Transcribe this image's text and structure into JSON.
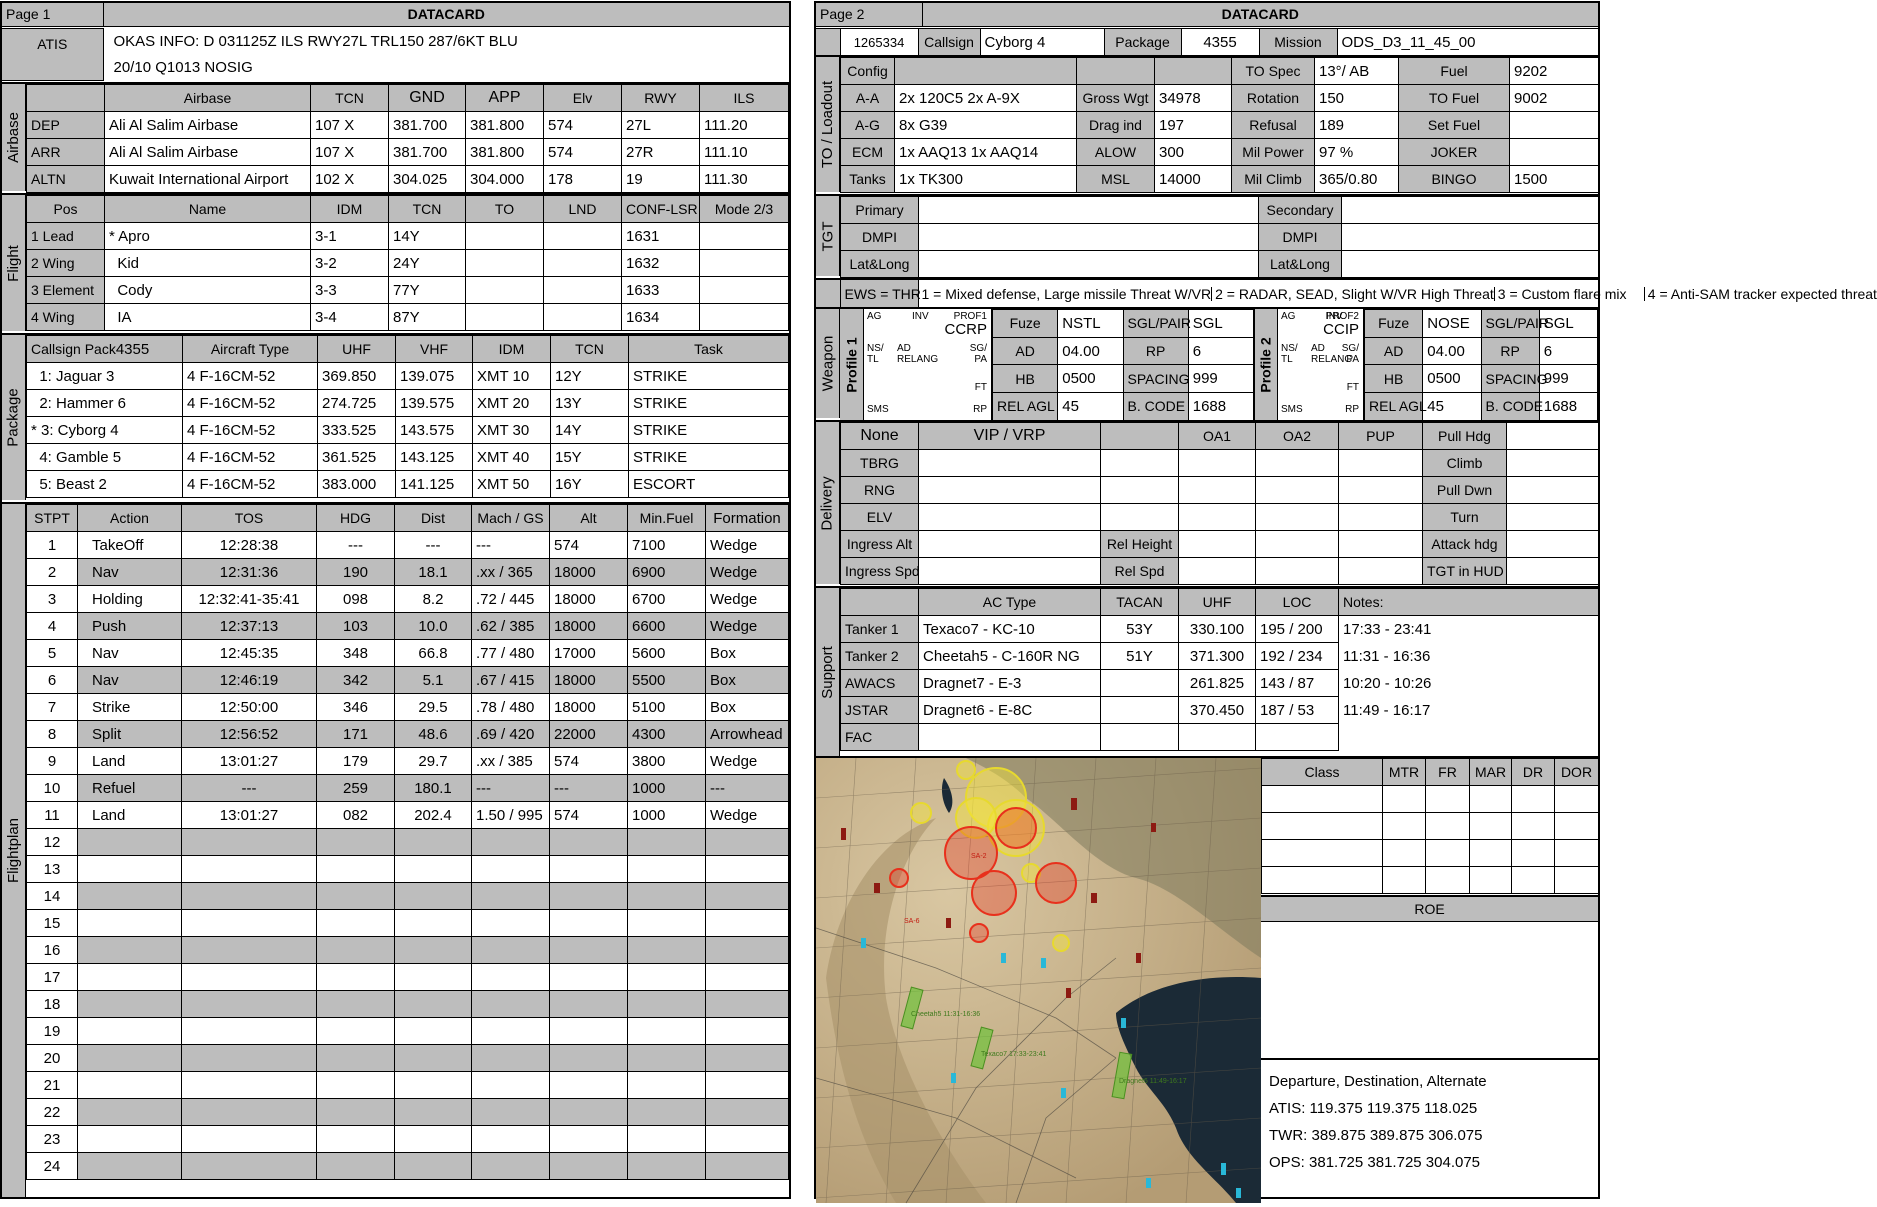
{
  "page1": {
    "page_label": "Page 1",
    "title": "DATACARD",
    "atis": {
      "label": "ATIS",
      "line1": "OKAS INFO: D 031125Z ILS RWY27L TRL150 287/6KT BLU",
      "line2": "20/10 Q1013  NOSIG"
    },
    "airbase": {
      "section": "Airbase",
      "headers": [
        "",
        "Airbase",
        "TCN",
        "GND",
        "APP",
        "Elv",
        "RWY",
        "ILS"
      ],
      "rows": [
        [
          "DEP",
          "Ali Al Salim Airbase",
          "107 X",
          "381.700",
          "381.800",
          "574",
          "27L",
          "111.20"
        ],
        [
          "ARR",
          "Ali Al Salim Airbase",
          "107 X",
          "381.700",
          "381.800",
          "574",
          "27R",
          "111.10"
        ],
        [
          "ALTN",
          "Kuwait International Airport",
          "102 X",
          "304.025",
          "304.000",
          "178",
          "19",
          "111.30"
        ]
      ]
    },
    "flight": {
      "section": "Flight",
      "headers": [
        "Pos",
        "Name",
        "IDM",
        "TCN",
        "TO",
        "LND",
        "CONF-LSR",
        "Mode 2/3"
      ],
      "rows": [
        [
          "1 Lead",
          "* Apro",
          "3-1",
          "14Y",
          "",
          "",
          "1631",
          ""
        ],
        [
          "2 Wing",
          "  Kid",
          "3-2",
          "24Y",
          "",
          "",
          "1632",
          ""
        ],
        [
          "3 Element",
          "  Cody",
          "3-3",
          "77Y",
          "",
          "",
          "1633",
          ""
        ],
        [
          "4 Wing",
          "  IA",
          "3-4",
          "87Y",
          "",
          "",
          "1634",
          ""
        ]
      ]
    },
    "package": {
      "section": "Package",
      "headers": [
        "Callsign Pack",
        "Aircraft Type",
        "UHF",
        "VHF",
        "IDM",
        "TCN",
        "Task"
      ],
      "pack_no": "4355",
      "rows": [
        [
          "  1: Jaguar 3",
          "4 F-16CM-52",
          "369.850",
          "139.075",
          "XMT 10",
          "12Y",
          "STRIKE"
        ],
        [
          "  2: Hammer 6",
          "4 F-16CM-52",
          "274.725",
          "139.575",
          "XMT 20",
          "13Y",
          "STRIKE"
        ],
        [
          "* 3: Cyborg 4",
          "4 F-16CM-52",
          "333.525",
          "143.575",
          "XMT 30",
          "14Y",
          "STRIKE"
        ],
        [
          "  4: Gamble 5",
          "4 F-16CM-52",
          "361.525",
          "143.125",
          "XMT 40",
          "15Y",
          "STRIKE"
        ],
        [
          "  5: Beast 2",
          "4 F-16CM-52",
          "383.000",
          "141.125",
          "XMT 50",
          "16Y",
          "ESCORT"
        ]
      ]
    },
    "flightplan": {
      "section": "Flightplan",
      "headers": [
        "STPT",
        "Action",
        "TOS",
        "HDG",
        "Dist",
        "Mach / GS",
        "Alt",
        "Min.Fuel",
        "Formation"
      ],
      "rows": [
        [
          "1",
          "TakeOff",
          "12:28:38",
          "---",
          "---",
          "---",
          "574",
          "7100",
          "Wedge"
        ],
        [
          "2",
          "Nav",
          "12:31:36",
          "190",
          "18.1",
          ".xx / 365",
          "18000",
          "6900",
          "Wedge"
        ],
        [
          "3",
          "Holding",
          "12:32:41-35:41",
          "098",
          "8.2",
          ".72 / 445",
          "18000",
          "6700",
          "Wedge"
        ],
        [
          "4",
          "Push",
          "12:37:13",
          "103",
          "10.0",
          ".62 / 385",
          "18000",
          "6600",
          "Wedge"
        ],
        [
          "5",
          "Nav",
          "12:45:35",
          "348",
          "66.8",
          ".77 / 480",
          "17000",
          "5600",
          "Box"
        ],
        [
          "6",
          "Nav",
          "12:46:19",
          "342",
          "5.1",
          ".67 / 415",
          "18000",
          "5500",
          "Box"
        ],
        [
          "7",
          "Strike",
          "12:50:00",
          "346",
          "29.5",
          ".78 / 480",
          "18000",
          "5100",
          "Box"
        ],
        [
          "8",
          "Split",
          "12:56:52",
          "171",
          "48.6",
          ".69 / 420",
          "22000",
          "4300",
          "Arrowhead"
        ],
        [
          "9",
          "Land",
          "13:01:27",
          "179",
          "29.7",
          ".xx / 385",
          "574",
          "3800",
          "Wedge"
        ],
        [
          "10",
          "Refuel",
          "---",
          "259",
          "180.1",
          "---",
          "---",
          "1000",
          "---"
        ],
        [
          "11",
          "Land",
          "13:01:27",
          "082",
          "202.4",
          "1.50 / 995",
          "574",
          "1000",
          "Wedge"
        ],
        [
          "12",
          "",
          "",
          "",
          "",
          "",
          "",
          "",
          ""
        ],
        [
          "13",
          "",
          "",
          "",
          "",
          "",
          "",
          "",
          ""
        ],
        [
          "14",
          "",
          "",
          "",
          "",
          "",
          "",
          "",
          ""
        ],
        [
          "15",
          "",
          "",
          "",
          "",
          "",
          "",
          "",
          ""
        ],
        [
          "16",
          "",
          "",
          "",
          "",
          "",
          "",
          "",
          ""
        ],
        [
          "17",
          "",
          "",
          "",
          "",
          "",
          "",
          "",
          ""
        ],
        [
          "18",
          "",
          "",
          "",
          "",
          "",
          "",
          "",
          ""
        ],
        [
          "19",
          "",
          "",
          "",
          "",
          "",
          "",
          "",
          ""
        ],
        [
          "20",
          "",
          "",
          "",
          "",
          "",
          "",
          "",
          ""
        ],
        [
          "21",
          "",
          "",
          "",
          "",
          "",
          "",
          "",
          ""
        ],
        [
          "22",
          "",
          "",
          "",
          "",
          "",
          "",
          "",
          ""
        ],
        [
          "23",
          "",
          "",
          "",
          "",
          "",
          "",
          "",
          ""
        ],
        [
          "24",
          "",
          "",
          "",
          "",
          "",
          "",
          "",
          ""
        ]
      ]
    }
  },
  "page2": {
    "page_label": "Page 2",
    "title": "DATACARD",
    "id_no": "1265334",
    "callsign_label": "Callsign",
    "callsign": "Cyborg 4",
    "package_label": "Package",
    "package": "4355",
    "mission_label": "Mission",
    "mission": "ODS_D3_11_45_00",
    "loadout_section": "TO / Loadout",
    "loadout_rows": [
      [
        "Config",
        "",
        "",
        "",
        "TO Spec",
        "13°/ AB",
        "Fuel",
        "9202"
      ],
      [
        "A-A",
        "2x 120C5 2x A-9X",
        "Gross Wgt",
        "34978",
        "Rotation",
        "150",
        "TO Fuel",
        "9002"
      ],
      [
        "A-G",
        "8x G39",
        "Drag ind",
        "197",
        "Refusal",
        "189",
        "Set Fuel",
        ""
      ],
      [
        "ECM",
        "1x AAQ13 1x AAQ14",
        "ALOW",
        "300",
        "Mil Power",
        "97 %",
        "JOKER",
        ""
      ],
      [
        "Tanks",
        "1x TK300",
        "MSL",
        "14000",
        "Mil Climb",
        "365/0.80",
        "BINGO",
        "1500"
      ]
    ],
    "tgt_section": "TGT",
    "tgt_rows": [
      [
        "Primary",
        "",
        "Secondary",
        ""
      ],
      [
        "DMPI",
        "",
        "DMPI",
        ""
      ],
      [
        "Lat&Long",
        "",
        "Lat&Long",
        ""
      ]
    ],
    "ews": {
      "label": "EWS = THR",
      "items": [
        "1 = Mixed defense, Large missile Threat W/VR",
        "2 = RADAR, SEAD, Slight W/VR High Threat",
        "3 = Custom flare mix",
        "4 = Anti-SAM tracker expected threat"
      ]
    },
    "weapon_section": "Weapon",
    "profiles": [
      {
        "label": "Profile 1",
        "top_left": "AG",
        "inv": "INV",
        "prof": "PROF1",
        "mode": "CCRP",
        "ns": "NS/",
        "tl": "TL",
        "ad": "AD",
        "relang": "RELANG",
        "sg": "SG/",
        "pa": "PA",
        "ft": "FT",
        "sms": "SMS",
        "rp": "RP",
        "fields": [
          [
            "Fuze",
            "NSTL",
            "SGL/PAIR",
            "SGL"
          ],
          [
            "AD",
            "04.00",
            "RP",
            "6"
          ],
          [
            "HB",
            "0500",
            "SPACING",
            "999"
          ],
          [
            "REL AGL",
            "45",
            "B. CODE",
            "1688"
          ]
        ]
      },
      {
        "label": "Profile 2",
        "top_left": "AG",
        "inv": "INV",
        "prof": "PROF2",
        "mode": "CCIP",
        "ns": "NS/",
        "tl": "TL",
        "ad": "AD",
        "relang": "RELANG",
        "sg": "SG/",
        "pa": "PA",
        "ft": "FT",
        "sms": "SMS",
        "rp": "RP",
        "fields": [
          [
            "Fuze",
            "NOSE",
            "SGL/PAIR",
            "SGL"
          ],
          [
            "AD",
            "04.00",
            "RP",
            "6"
          ],
          [
            "HB",
            "0500",
            "SPACING",
            "999"
          ],
          [
            "REL AGL",
            "45",
            "B. CODE",
            "1688"
          ]
        ]
      }
    ],
    "delivery_section": "Delivery",
    "delivery_rows": [
      [
        "None",
        "VIP / VRP",
        "",
        "OA1",
        "OA2",
        "PUP",
        "Pull Hdg",
        ""
      ],
      [
        "TBRG",
        "",
        "",
        "",
        "",
        "",
        "Climb",
        ""
      ],
      [
        "RNG",
        "",
        "",
        "",
        "",
        "",
        "Pull Dwn",
        ""
      ],
      [
        "ELV",
        "",
        "",
        "",
        "",
        "",
        "Turn",
        ""
      ],
      [
        "Ingress Alt",
        "",
        "Rel Height",
        "",
        "",
        "",
        "Attack hdg",
        ""
      ],
      [
        "Ingress Spd",
        "",
        "Rel Spd",
        "",
        "",
        "",
        "TGT in HUD",
        ""
      ]
    ],
    "support_section": "Support",
    "support_headers": [
      "",
      "AC Type",
      "TACAN",
      "UHF",
      "LOC",
      "Notes:"
    ],
    "support_rows": [
      [
        "Tanker 1",
        "Texaco7 - KC-10",
        "53Y",
        "330.100",
        "195 / 200",
        "17:33 - 23:41"
      ],
      [
        "Tanker 2",
        "Cheetah5 - C-160R NG",
        "51Y",
        "371.300",
        "192 / 234",
        "11:31 - 16:36"
      ],
      [
        "AWACS",
        "Dragnet7 - E-3",
        "",
        "261.825",
        "143 / 87",
        "10:20 - 10:26"
      ],
      [
        "JSTAR",
        "Dragnet6 - E-8C",
        "",
        "370.450",
        "187 / 53",
        "11:49 - 16:17"
      ],
      [
        "FAC",
        "",
        "",
        "",
        "",
        ""
      ]
    ],
    "class_headers": [
      "Class",
      "MTR",
      "FR",
      "MAR",
      "DR",
      "DOR"
    ],
    "roe_label": "ROE",
    "freq": {
      "header": "Departure, Destination, Alternate",
      "atis": "ATIS: 119.375  119.375  118.025",
      "twr": "TWR: 389.875  389.875  306.075",
      "ops": "OPS: 381.725  381.725  304.075"
    },
    "map_labels": {
      "tanker1": "Cheetah5 11:31-16:36",
      "tanker2": "Texaco7 17:33-23:41",
      "tanker3": "Dragnet6 11:49-16:17",
      "sam1": "SA-2",
      "sam2": "SA-6"
    },
    "colors": {
      "header_gray": "#bdbdbd",
      "threat_red": "#e8301c",
      "threat_yellow": "#f5e43a",
      "water": "#1b2a36"
    }
  }
}
